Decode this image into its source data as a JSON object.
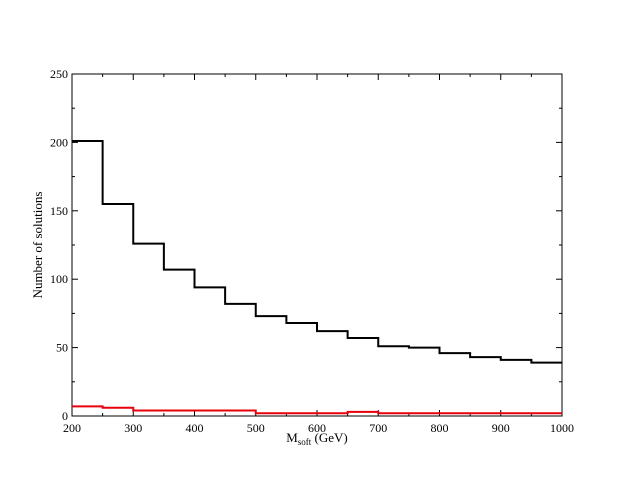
{
  "chart_data": {
    "type": "step",
    "title": "",
    "xlabel": {
      "main": "M",
      "sub": "soft",
      "unit": " (GeV)"
    },
    "ylabel": "Number of solutions",
    "xlim": [
      200,
      1000
    ],
    "ylim": [
      0,
      250
    ],
    "x_ticks": [
      200,
      300,
      400,
      500,
      600,
      700,
      800,
      900,
      1000
    ],
    "y_ticks": [
      0,
      50,
      100,
      150,
      200,
      250
    ],
    "grid": false,
    "legend": "none",
    "bin_edges": [
      200,
      250,
      300,
      350,
      400,
      450,
      500,
      550,
      600,
      650,
      700,
      750,
      800,
      850,
      900,
      950,
      1000
    ],
    "series": [
      {
        "color": "#000000",
        "values": [
          201,
          155,
          126,
          107,
          94,
          82,
          73,
          68,
          62,
          57,
          51,
          50,
          46,
          43,
          41,
          39
        ]
      },
      {
        "color": "#e8000b",
        "values": [
          7,
          6,
          4,
          4,
          4,
          4,
          2,
          2,
          2,
          3,
          2,
          2,
          2,
          2,
          2,
          2
        ]
      }
    ]
  }
}
